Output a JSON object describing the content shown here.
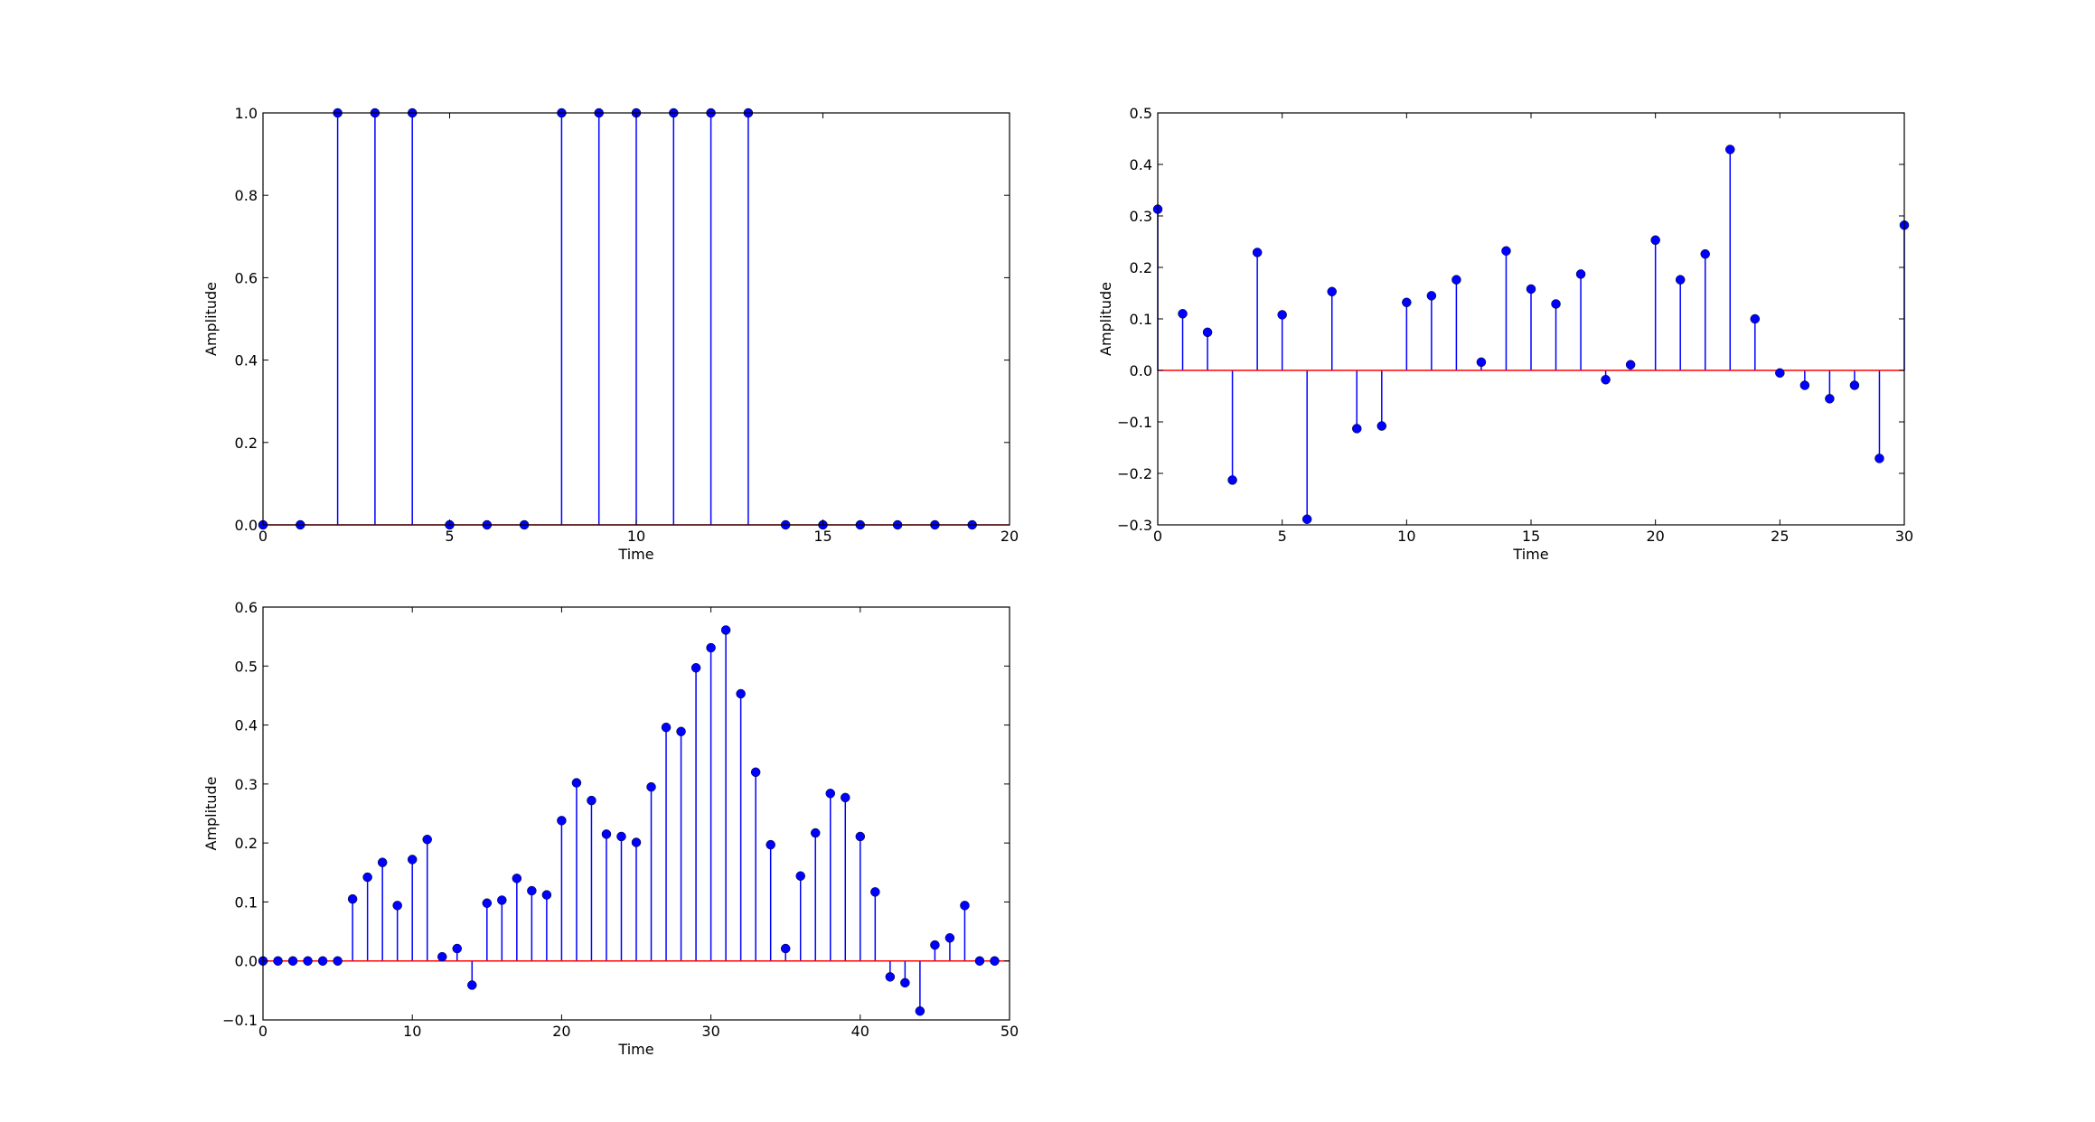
{
  "chart_data": [
    {
      "type": "stem",
      "xlabel": "Time",
      "ylabel": "Amplitude",
      "color": "#0000ff",
      "baseline_color": "#ff0000",
      "x": [
        0,
        1,
        2,
        3,
        4,
        5,
        6,
        7,
        8,
        9,
        10,
        11,
        12,
        13,
        14,
        15,
        16,
        17,
        18,
        19
      ],
      "values": [
        0,
        0,
        1,
        1,
        1,
        0,
        0,
        0,
        1,
        1,
        1,
        1,
        1,
        1,
        0,
        0,
        0,
        0,
        0,
        0
      ],
      "xlim": [
        0,
        20
      ],
      "xticks": [
        0,
        5,
        10,
        15,
        20
      ],
      "ylim": [
        0,
        1
      ],
      "yticks": [
        {
          "value": 0,
          "label": "0.0"
        },
        0.2,
        0.4,
        0.6,
        0.8,
        {
          "value": 1,
          "label": "1.0"
        }
      ]
    },
    {
      "type": "stem",
      "xlabel": "Time",
      "ylabel": "Amplitude",
      "color": "#0000ff",
      "baseline_color": "#ff0000",
      "x": [
        0,
        1,
        2,
        3,
        4,
        5,
        6,
        7,
        8,
        9,
        10,
        11,
        12,
        13,
        14,
        15,
        16,
        17,
        18,
        19,
        20,
        21,
        22,
        23,
        24,
        25,
        26,
        27,
        28,
        29,
        30
      ],
      "values": [
        0.313,
        0.11,
        0.074,
        -0.213,
        0.229,
        0.108,
        -0.289,
        0.153,
        -0.113,
        -0.108,
        0.132,
        0.145,
        0.176,
        0.016,
        0.232,
        0.158,
        0.129,
        0.187,
        -0.018,
        0.011,
        0.253,
        0.176,
        0.226,
        0.429,
        0.1,
        -0.005,
        -0.029,
        -0.055,
        -0.029,
        -0.171,
        0.282
      ],
      "xlim": [
        0,
        30
      ],
      "xticks": [
        0,
        5,
        10,
        15,
        20,
        25,
        30
      ],
      "ylim": [
        -0.3,
        0.5
      ],
      "yticks": [
        {
          "value": -0.3,
          "label": "−0.3"
        },
        {
          "value": -0.2,
          "label": "−0.2"
        },
        {
          "value": -0.1,
          "label": "−0.1"
        },
        {
          "value": 0,
          "label": "0.0"
        },
        0.1,
        0.2,
        0.3,
        0.4,
        0.5
      ]
    },
    {
      "type": "stem",
      "xlabel": "Time",
      "ylabel": "Amplitude",
      "color": "#0000ff",
      "baseline_color": "#ff0000",
      "x": [
        0,
        1,
        2,
        3,
        4,
        5,
        6,
        7,
        8,
        9,
        10,
        11,
        12,
        13,
        14,
        15,
        16,
        17,
        18,
        19,
        20,
        21,
        22,
        23,
        24,
        25,
        26,
        27,
        28,
        29,
        30,
        31,
        32,
        33,
        34,
        35,
        36,
        37,
        38,
        39,
        40,
        41,
        42,
        43,
        44,
        45,
        46,
        47,
        48,
        49
      ],
      "values": [
        0,
        0,
        0,
        0,
        0,
        0,
        0.105,
        0.142,
        0.167,
        0.094,
        0.172,
        0.206,
        0.007,
        0.021,
        -0.041,
        0.098,
        0.103,
        0.14,
        0.119,
        0.112,
        0.238,
        0.302,
        0.272,
        0.215,
        0.211,
        0.201,
        0.295,
        0.396,
        0.389,
        0.497,
        0.531,
        0.561,
        0.453,
        0.32,
        0.197,
        0.021,
        0.144,
        0.217,
        0.284,
        0.277,
        0.211,
        0.117,
        -0.027,
        -0.037,
        -0.085,
        0.027,
        0.039,
        0.094,
        0,
        0
      ],
      "xlim": [
        0,
        50
      ],
      "xticks": [
        0,
        10,
        20,
        30,
        40,
        50
      ],
      "ylim": [
        -0.1,
        0.6
      ],
      "yticks": [
        {
          "value": -0.1,
          "label": "−0.1"
        },
        {
          "value": 0,
          "label": "0.0"
        },
        0.1,
        0.2,
        0.3,
        0.4,
        0.5,
        0.6
      ]
    }
  ]
}
